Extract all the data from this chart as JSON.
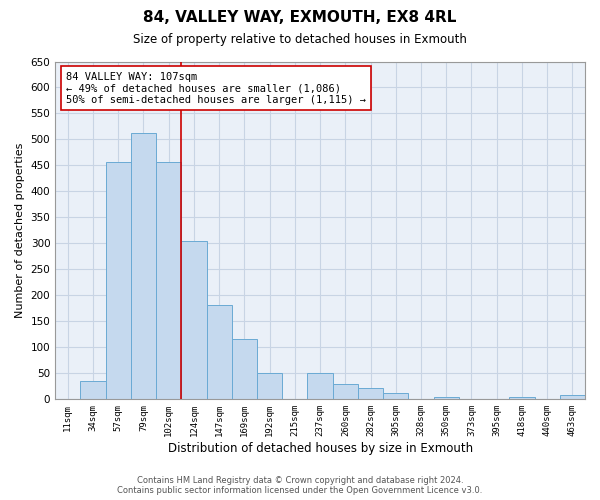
{
  "title": "84, VALLEY WAY, EXMOUTH, EX8 4RL",
  "subtitle": "Size of property relative to detached houses in Exmouth",
  "xlabel": "Distribution of detached houses by size in Exmouth",
  "ylabel": "Number of detached properties",
  "bar_labels": [
    "11sqm",
    "34sqm",
    "57sqm",
    "79sqm",
    "102sqm",
    "124sqm",
    "147sqm",
    "169sqm",
    "192sqm",
    "215sqm",
    "237sqm",
    "260sqm",
    "282sqm",
    "305sqm",
    "328sqm",
    "350sqm",
    "373sqm",
    "395sqm",
    "418sqm",
    "440sqm",
    "463sqm"
  ],
  "bar_heights": [
    0,
    35,
    457,
    513,
    457,
    305,
    181,
    117,
    50,
    0,
    50,
    29,
    21,
    13,
    0,
    5,
    0,
    0,
    5,
    0,
    8
  ],
  "bar_color": "#c5d9ee",
  "bar_edge_color": "#6aaad4",
  "vline_x": 4.5,
  "vline_color": "#cc0000",
  "annotation_line1": "84 VALLEY WAY: 107sqm",
  "annotation_line2": "← 49% of detached houses are smaller (1,086)",
  "annotation_line3": "50% of semi-detached houses are larger (1,115) →",
  "annotation_box_color": "#ffffff",
  "annotation_box_edge": "#cc0000",
  "ylim": [
    0,
    650
  ],
  "yticks": [
    0,
    50,
    100,
    150,
    200,
    250,
    300,
    350,
    400,
    450,
    500,
    550,
    600,
    650
  ],
  "footer_line1": "Contains HM Land Registry data © Crown copyright and database right 2024.",
  "footer_line2": "Contains public sector information licensed under the Open Government Licence v3.0.",
  "bg_color": "#ffffff",
  "grid_color": "#c8d4e4",
  "plot_bg_color": "#eaf0f8"
}
